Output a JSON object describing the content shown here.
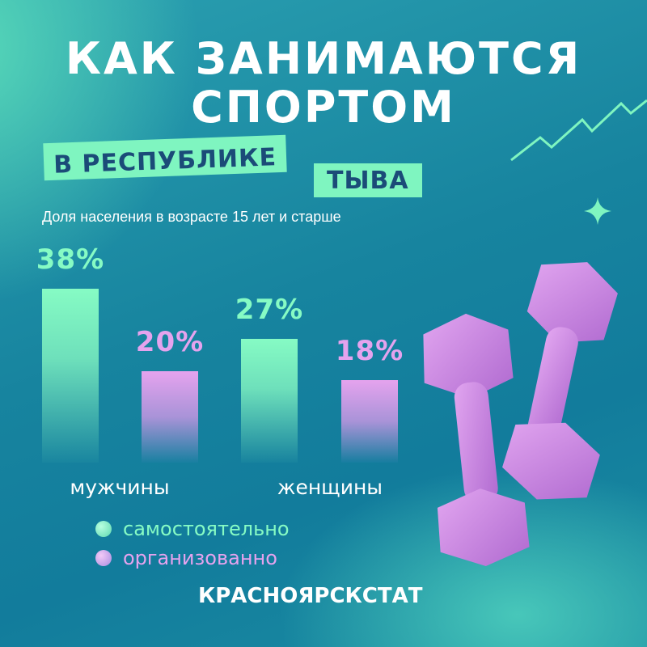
{
  "title_line1": "КАК ЗАНИМАЮТСЯ",
  "title_line2": "СПОРТОМ",
  "tag1": "В РЕСПУБЛИКЕ",
  "tag2": "ТЫВА",
  "subtitle": "Доля населения в возрасте 15 лет и старше",
  "source": "КРАСНОЯРСКСТАТ",
  "colors": {
    "self": "#86fbc4",
    "organized": "#e5a3ee",
    "tag": "#7ff5c0",
    "dumbbell": "#c97fe0"
  },
  "chart_data": {
    "type": "bar",
    "categories": [
      "мужчины",
      "женщины"
    ],
    "series": [
      {
        "name": "самостоятельно",
        "values": [
          38,
          27
        ],
        "labels": [
          "38%",
          "27%"
        ]
      },
      {
        "name": "организованно",
        "values": [
          20,
          18
        ],
        "labels": [
          "20%",
          "18%"
        ]
      }
    ],
    "unit": "%",
    "grid": false,
    "legend": "bottom-left"
  }
}
